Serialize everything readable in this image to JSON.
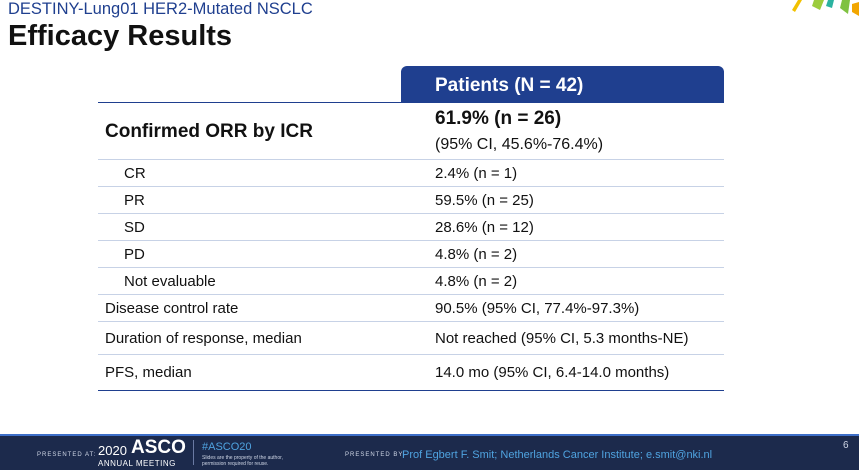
{
  "slide": {
    "subtitle": "DESTINY-Lung01 HER2-Mutated NSCLC",
    "title": "Efficacy Results",
    "page_number": "6"
  },
  "table": {
    "column_header": "Patients (N = 42)",
    "orr": {
      "label": "Confirmed ORR by ICR",
      "value": "61.9% (n = 26)",
      "ci": "(95% CI, 45.6%-76.4%)"
    },
    "rows": [
      {
        "label": "CR",
        "value": "2.4% (n = 1)"
      },
      {
        "label": "PR",
        "value": "59.5% (n = 25)"
      },
      {
        "label": "SD",
        "value": "28.6% (n = 12)"
      },
      {
        "label": "PD",
        "value": "4.8% (n = 2)"
      },
      {
        "label": "Not evaluable",
        "value": "4.8% (n = 2)"
      },
      {
        "label": "Disease control rate",
        "value": "90.5% (95% CI, 77.4%-97.3%)"
      },
      {
        "label": "Duration of response, median",
        "value": "Not reached (95% CI, 5.3 months-NE)"
      },
      {
        "label": "PFS, median",
        "value": "14.0 mo (95% CI, 6.4-14.0 months)"
      }
    ]
  },
  "footer": {
    "presented_at": "PRESENTED AT:",
    "year": "2020",
    "brand": "ASCO",
    "meeting": "ANNUAL MEETING",
    "hashtag": "#ASCO20",
    "rights_line1": "Slides are the property of the author,",
    "rights_line2": "permission required for reuse.",
    "presented_by": "PRESENTED BY:",
    "presenter": "Prof Egbert F. Smit; Netherlands Cancer Institute; e.smit@nki.nl"
  },
  "colors": {
    "accent": "#1f3f8f",
    "footer_bg": "#1c2a4c",
    "footer_link": "#4fa3e0"
  }
}
